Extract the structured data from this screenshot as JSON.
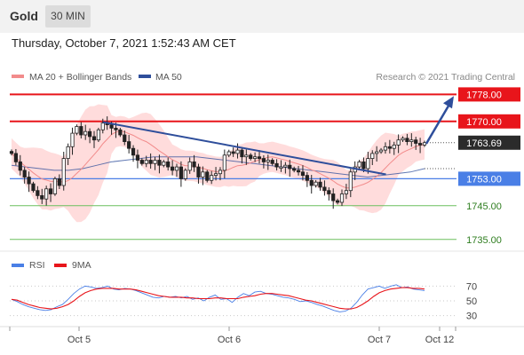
{
  "header": {
    "instrument": "Gold",
    "timeframe": "30 MIN",
    "datetime": "Thursday, October 7, 2021 1:52:43 AM CET"
  },
  "colors": {
    "resistance": "#e8151b",
    "support": "#4a7fe6",
    "target_support": "#6cbf5f",
    "trend": "#2e4e9b",
    "bollinger": "#ffd0d0",
    "ma50": "#2e4e9b",
    "ma20": "#f28b8b",
    "bull": "#ffffff",
    "bear": "#222222"
  },
  "chart_data": [
    {
      "type": "candlestick",
      "title": "Gold",
      "legend": [
        {
          "name": "MA 20 + Bollinger Bands",
          "color": "#f28b8b"
        },
        {
          "name": "MA 50",
          "color": "#2e4e9b"
        }
      ],
      "credit": "Research © 2021 Trading Central",
      "x_labels": [
        "Oct 5",
        "Oct 6",
        "Oct 7",
        "Oct 12"
      ],
      "ylim": [
        1731,
        1781
      ],
      "levels": [
        {
          "value": 1778.0,
          "label": "1778.00",
          "kind": "resistance"
        },
        {
          "value": 1770.0,
          "label": "1770.00",
          "kind": "resistance"
        },
        {
          "value": 1763.69,
          "label": "1763.69",
          "kind": "last"
        },
        {
          "value": 1753.0,
          "label": "1753.00",
          "kind": "pivot"
        },
        {
          "value": 1745.0,
          "label": "1745.00",
          "kind": "support"
        },
        {
          "value": 1735.0,
          "label": "1735.00",
          "kind": "support"
        }
      ],
      "close_series": [
        1760.5,
        1758.0,
        1755.5,
        1753.5,
        1751.5,
        1749.5,
        1748.0,
        1747.0,
        1750.0,
        1748.5,
        1753.0,
        1751.0,
        1759.0,
        1762.5,
        1766.5,
        1768.5,
        1766.0,
        1767.0,
        1765.5,
        1764.5,
        1767.5,
        1769.5,
        1769.0,
        1768.0,
        1767.5,
        1766.0,
        1764.0,
        1762.0,
        1760.0,
        1758.5,
        1757.5,
        1758.5,
        1757.5,
        1758.5,
        1757.0,
        1758.0,
        1756.5,
        1755.5,
        1756.5,
        1753.0,
        1755.5,
        1758.0,
        1756.5,
        1753.5,
        1755.0,
        1752.5,
        1754.0,
        1754.5,
        1755.5,
        1760.0,
        1761.0,
        1760.5,
        1761.5,
        1759.5,
        1760.0,
        1759.0,
        1759.5,
        1759.0,
        1758.0,
        1758.5,
        1757.5,
        1756.5,
        1756.5,
        1757.0,
        1756.0,
        1755.5,
        1755.0,
        1754.0,
        1752.5,
        1751.0,
        1752.0,
        1750.5,
        1749.5,
        1748.5,
        1746.5,
        1746.0,
        1748.5,
        1749.5,
        1755.0,
        1756.5,
        1758.0,
        1756.0,
        1759.0,
        1760.5,
        1761.0,
        1761.5,
        1762.5,
        1762.0,
        1763.0,
        1764.5,
        1765.0,
        1764.0,
        1764.5,
        1763.5,
        1763.0,
        1763.69
      ],
      "ma50_series": [
        1757.0,
        1756.5,
        1756.0,
        1755.5,
        1755.5,
        1756.0,
        1757.0,
        1758.0,
        1758.5,
        1759.0,
        1759.5,
        1759.5,
        1759.5,
        1759.5,
        1759.0,
        1758.5,
        1758.0,
        1757.5,
        1757.0,
        1756.5,
        1756.0,
        1755.5,
        1755.0,
        1754.5,
        1754.0,
        1753.5,
        1754.0,
        1754.5,
        1755.0,
        1756.0
      ],
      "trendline": {
        "from": "1769.5 at Oct 5",
        "to": "1754.5 at Oct 7"
      },
      "projection": {
        "from": 1763.69,
        "to": 1776.0
      }
    },
    {
      "type": "line",
      "title": "RSI",
      "series": [
        {
          "name": "RSI",
          "color": "#4a7fe6"
        },
        {
          "name": "9MA",
          "color": "#e8151b"
        }
      ],
      "y_ticks": [
        70,
        50,
        30
      ],
      "ylim": [
        15,
        85
      ],
      "rsi": [
        52,
        49,
        45,
        42,
        40,
        38,
        37,
        38,
        42,
        45,
        52,
        60,
        66,
        70,
        69,
        67,
        68,
        70,
        66,
        65,
        67,
        66,
        64,
        61,
        58,
        55,
        54,
        56,
        55,
        56,
        54,
        56,
        52,
        54,
        50,
        55,
        58,
        52,
        53,
        48,
        55,
        60,
        57,
        62,
        63,
        60,
        59,
        57,
        55,
        54,
        52,
        49,
        50,
        48,
        45,
        43,
        40,
        37,
        35,
        36,
        40,
        48,
        58,
        66,
        68,
        70,
        67,
        70,
        72,
        68,
        69,
        66,
        65,
        64
      ],
      "ma9": [
        52,
        51,
        48,
        45,
        43,
        41,
        40,
        39,
        40,
        42,
        45,
        50,
        56,
        61,
        64,
        66,
        67,
        67,
        67,
        66,
        66,
        66,
        65,
        63,
        61,
        59,
        57,
        56,
        55,
        55,
        55,
        54,
        54,
        53,
        53,
        53,
        54,
        54,
        53,
        53,
        53,
        55,
        56,
        57,
        59,
        60,
        60,
        59,
        58,
        57,
        55,
        53,
        51,
        50,
        48,
        46,
        44,
        42,
        40,
        39,
        39,
        41,
        45,
        50,
        56,
        61,
        64,
        66,
        67,
        68,
        68,
        67,
        67,
        66
      ]
    }
  ]
}
